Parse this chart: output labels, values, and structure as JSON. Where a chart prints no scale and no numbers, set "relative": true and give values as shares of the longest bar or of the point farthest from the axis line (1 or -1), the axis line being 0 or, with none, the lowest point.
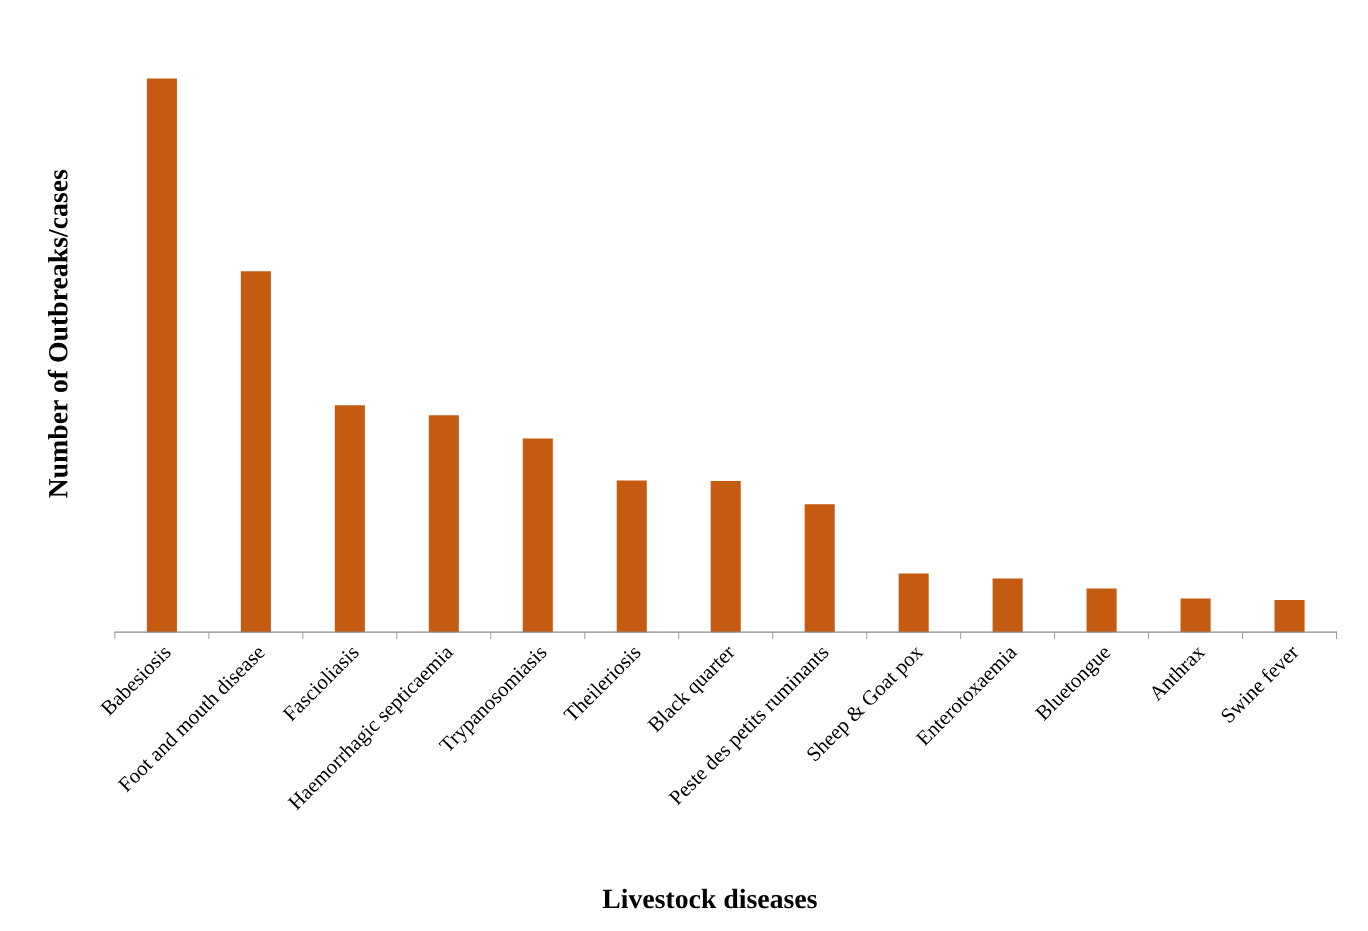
{
  "chart_data": {
    "type": "bar",
    "relative": true,
    "xlabel": "Livestock diseases",
    "ylabel": "Number of Outbreaks/cases",
    "color": "#c55a11",
    "grid": false,
    "legend": false,
    "categories": [
      "Babesiosis",
      "Foot and mouth disease",
      "Fascioliasis",
      "Haemorrhagic septicaemia",
      "Trypanosomiasis",
      "Theileriosis",
      "Black quarter",
      "Peste des petits ruminants",
      "Sheep & Goat pox",
      "Enterotoxaemia",
      "Bluetongue",
      "Anthrax",
      "Swine fever"
    ],
    "values": [
      1,
      0.652,
      0.41,
      0.392,
      0.35,
      0.274,
      0.273,
      0.231,
      0.106,
      0.097,
      0.079,
      0.061,
      0.058
    ]
  }
}
